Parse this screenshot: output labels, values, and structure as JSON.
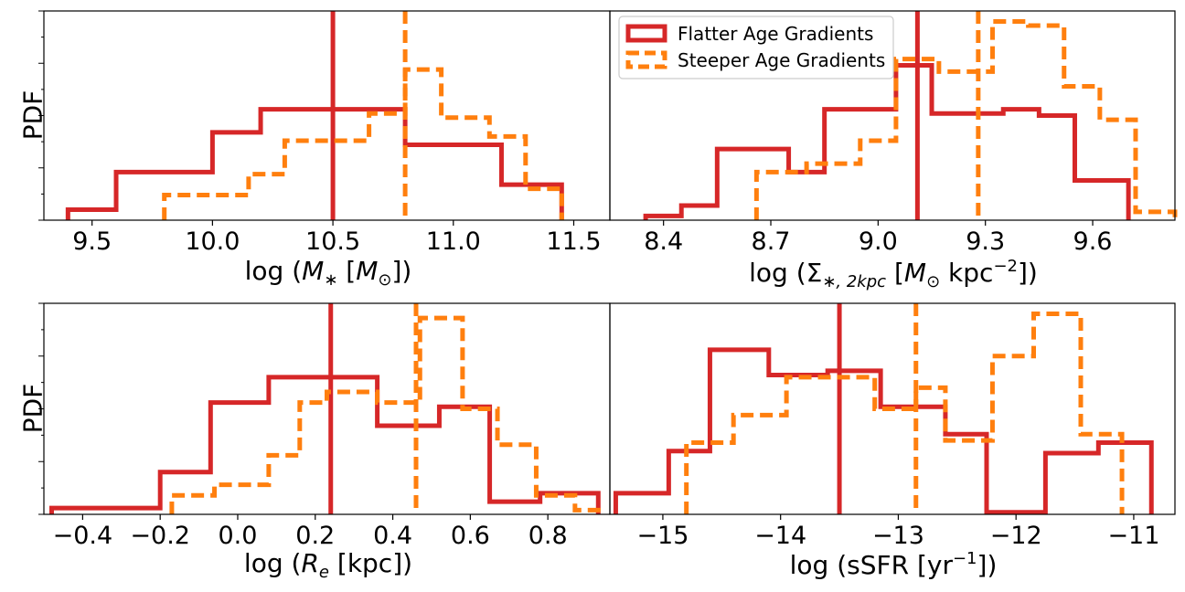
{
  "legend": {
    "flatter": "Flatter Age Gradients",
    "steeper": "Steeper Age Gradients"
  },
  "colors": {
    "flatter": "#d62728",
    "steeper": "#ff7f0e",
    "axes": "#000000"
  },
  "chart_data": [
    {
      "type": "histogram",
      "panel": "top-left",
      "ylabel": "PDF",
      "xlabel": {
        "prefix": "log (",
        "math": "M",
        "sub": "∗",
        "unit_open": " [",
        "unit_math": "M",
        "unit_sub": "⊙",
        "suffix": "])"
      },
      "xlim": [
        9.3,
        11.65
      ],
      "ylim": [
        0,
        1.0
      ],
      "xticks": [
        9.5,
        10.0,
        10.5,
        11.0,
        11.5
      ],
      "xtick_labels": [
        "9.5",
        "10.0",
        "10.5",
        "11.0",
        "11.5"
      ],
      "series": [
        {
          "name": "Flatter Age Gradients",
          "style": "solid",
          "edges": [
            9.4,
            9.6,
            10.0,
            10.2,
            10.8,
            11.2,
            11.45
          ],
          "values": [
            0.05,
            0.23,
            0.42,
            0.53,
            0.36,
            0.17
          ],
          "median": 10.5
        },
        {
          "name": "Steeper Age Gradients",
          "style": "dashed",
          "edges": [
            9.8,
            10.15,
            10.3,
            10.65,
            10.8,
            10.95,
            11.15,
            11.3,
            11.45
          ],
          "values": [
            0.12,
            0.22,
            0.38,
            0.51,
            0.72,
            0.49,
            0.4,
            0.15
          ],
          "median": 10.8
        }
      ]
    },
    {
      "type": "histogram",
      "panel": "top-right",
      "xlabel": {
        "prefix": "log (Σ",
        "sub": "∗, 2kpc",
        "unit_open": " [",
        "unit_math": "M",
        "unit_sub": "⊙",
        "unit_text": " kpc",
        "sup": "−2",
        "suffix": "])"
      },
      "xlim": [
        8.25,
        9.83
      ],
      "ylim": [
        0,
        1.0
      ],
      "xticks": [
        8.4,
        8.7,
        9.0,
        9.3,
        9.6
      ],
      "xtick_labels": [
        "8.4",
        "8.7",
        "9.0",
        "9.3",
        "9.6"
      ],
      "series": [
        {
          "name": "Flatter Age Gradients",
          "style": "solid",
          "edges": [
            8.35,
            8.45,
            8.55,
            8.75,
            8.85,
            9.05,
            9.15,
            9.35,
            9.45,
            9.55,
            9.7
          ],
          "values": [
            0.02,
            0.07,
            0.34,
            0.23,
            0.53,
            0.74,
            0.51,
            0.53,
            0.5,
            0.19
          ],
          "median": 9.11
        },
        {
          "name": "Steeper Age Gradients",
          "style": "dashed",
          "edges": [
            8.66,
            8.8,
            8.95,
            9.05,
            9.17,
            9.32,
            9.42,
            9.52,
            9.62,
            9.72,
            9.83
          ],
          "values": [
            0.23,
            0.27,
            0.38,
            0.77,
            0.71,
            0.95,
            0.93,
            0.64,
            0.48,
            0.04
          ],
          "median": 9.28
        }
      ]
    },
    {
      "type": "histogram",
      "panel": "bottom-left",
      "ylabel": "PDF",
      "xlabel": {
        "prefix": "log (",
        "math": "R",
        "sub": "e",
        "unit_open": " [",
        "unit_text": "kpc",
        "suffix": "])"
      },
      "xlim": [
        -0.5,
        0.96
      ],
      "ylim": [
        0,
        1.0
      ],
      "xticks": [
        -0.4,
        -0.2,
        0.0,
        0.2,
        0.4,
        0.6,
        0.8
      ],
      "xtick_labels": [
        "−0.4",
        "−0.2",
        "0.0",
        "0.2",
        "0.4",
        "0.6",
        "0.8"
      ],
      "series": [
        {
          "name": "Flatter Age Gradients",
          "style": "solid",
          "edges": [
            -0.48,
            -0.2,
            -0.07,
            0.08,
            0.36,
            0.52,
            0.65,
            0.78,
            0.93
          ],
          "values": [
            0.03,
            0.2,
            0.53,
            0.65,
            0.42,
            0.51,
            0.06,
            0.1
          ],
          "median": 0.24
        },
        {
          "name": "Steeper Age Gradients",
          "style": "dashed",
          "edges": [
            -0.17,
            -0.06,
            0.08,
            0.16,
            0.23,
            0.36,
            0.47,
            0.58,
            0.67,
            0.77,
            0.87,
            0.94
          ],
          "values": [
            0.09,
            0.14,
            0.28,
            0.53,
            0.58,
            0.53,
            0.93,
            0.5,
            0.33,
            0.09,
            0.02
          ],
          "median": 0.46
        }
      ]
    },
    {
      "type": "histogram",
      "panel": "bottom-right",
      "xlabel": {
        "prefix": "log (sSFR [yr",
        "sup": "−1",
        "suffix": "])"
      },
      "xlim": [
        -15.45,
        -10.65
      ],
      "ylim": [
        0,
        1.0
      ],
      "xticks": [
        -15,
        -14,
        -13,
        -12,
        -11
      ],
      "xtick_labels": [
        "−15",
        "−14",
        "−13",
        "−12",
        "−11"
      ],
      "series": [
        {
          "name": "Flatter Age Gradients",
          "style": "solid",
          "edges": [
            -15.4,
            -14.95,
            -14.6,
            -14.1,
            -13.6,
            -13.15,
            -12.6,
            -12.25,
            -11.75,
            -11.3,
            -10.85
          ],
          "values": [
            0.1,
            0.3,
            0.78,
            0.66,
            0.68,
            0.51,
            0.38,
            0.01,
            0.29,
            0.34
          ],
          "median": -13.5
        },
        {
          "name": "Steeper Age Gradients",
          "style": "dashed",
          "edges": [
            -14.8,
            -14.4,
            -13.95,
            -13.2,
            -12.85,
            -12.6,
            -12.2,
            -11.85,
            -11.45,
            -11.1
          ],
          "values": [
            0.34,
            0.47,
            0.65,
            0.5,
            0.6,
            0.35,
            0.75,
            0.95,
            0.38
          ],
          "median": -12.85
        }
      ]
    }
  ]
}
